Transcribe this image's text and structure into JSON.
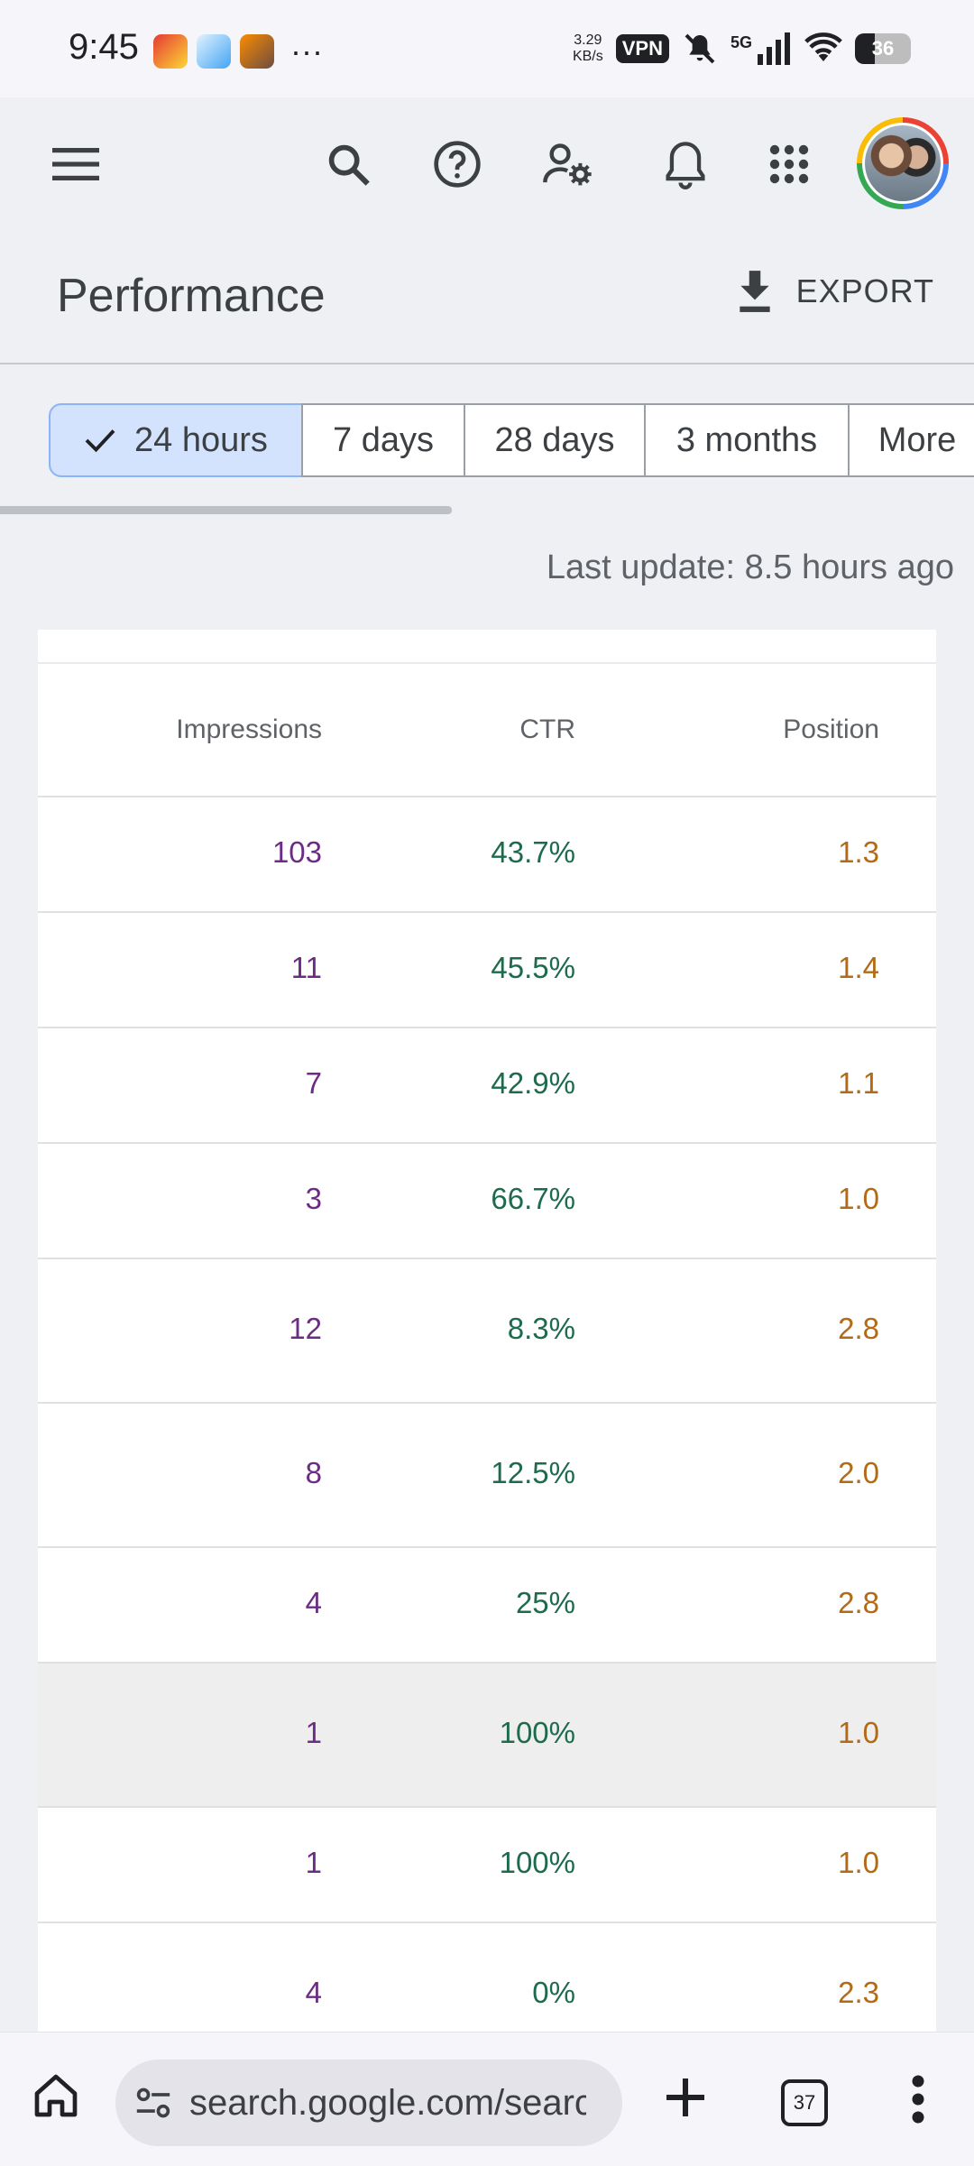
{
  "status_bar": {
    "time": "9:45",
    "more": "···",
    "net_speed_value": "3.29",
    "net_speed_unit": "KB/s",
    "vpn": "VPN",
    "network": "5G",
    "battery": "36",
    "battery_level_percent": 36
  },
  "app_bar": {
    "icons": [
      "menu-icon",
      "search-icon",
      "help-icon",
      "manage-users-icon",
      "notifications-icon",
      "apps-grid-icon"
    ]
  },
  "header": {
    "title": "Performance",
    "export_label": "EXPORT"
  },
  "date_filters": {
    "selected": "24 hours",
    "chips": [
      "24 hours",
      "7 days",
      "28 days",
      "3 months",
      "More"
    ]
  },
  "last_update": "Last update: 8.5 hours ago",
  "table": {
    "columns": [
      "Impressions",
      "CTR",
      "Position"
    ],
    "rows": [
      {
        "impressions": "103",
        "ctr": "43.7%",
        "position": "1.3"
      },
      {
        "impressions": "11",
        "ctr": "45.5%",
        "position": "1.4"
      },
      {
        "impressions": "7",
        "ctr": "42.9%",
        "position": "1.1"
      },
      {
        "impressions": "3",
        "ctr": "66.7%",
        "position": "1.0"
      },
      {
        "impressions": "12",
        "ctr": "8.3%",
        "position": "2.8"
      },
      {
        "impressions": "8",
        "ctr": "12.5%",
        "position": "2.0"
      },
      {
        "impressions": "4",
        "ctr": "25%",
        "position": "2.8"
      },
      {
        "impressions": "1",
        "ctr": "100%",
        "position": "1.0"
      },
      {
        "impressions": "1",
        "ctr": "100%",
        "position": "1.0"
      },
      {
        "impressions": "4",
        "ctr": "0%",
        "position": "2.3"
      }
    ]
  },
  "browser_bar": {
    "url": "search.google.com/search-console/performance",
    "tab_count": "37"
  },
  "colors": {
    "impressions": "#6d2c84",
    "ctr": "#1e6a4d",
    "position": "#b26a14",
    "selected_chip": "#d3e3fd"
  }
}
